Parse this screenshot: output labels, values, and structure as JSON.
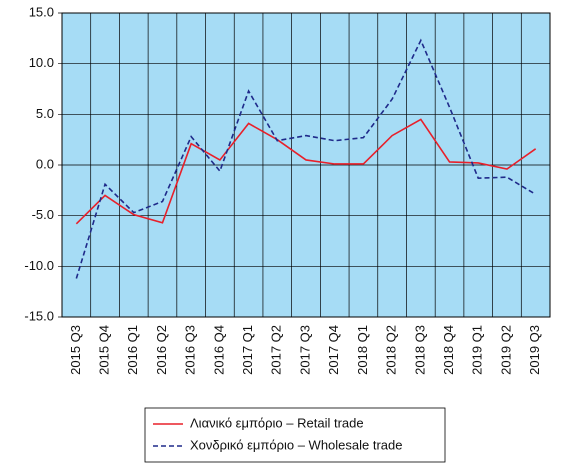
{
  "chart_data": {
    "type": "line",
    "categories": [
      "2015 Q3",
      "2015 Q4",
      "2016 Q1",
      "2016 Q2",
      "2016 Q3",
      "2016 Q4",
      "2017 Q1",
      "2017 Q2",
      "2017 Q3",
      "2017 Q4",
      "2018 Q1",
      "2018 Q2",
      "2018 Q3",
      "2018 Q4",
      "2019 Q1",
      "2019 Q2",
      "2019 Q3"
    ],
    "series": [
      {
        "name": "Λιανικό εμπόριο – Retail trade",
        "color": "#e8202a",
        "dash": false,
        "values": [
          -5.8,
          -3.0,
          -4.9,
          -5.7,
          2.1,
          0.5,
          4.1,
          2.5,
          0.5,
          0.1,
          0.1,
          2.9,
          4.5,
          0.3,
          0.2,
          -0.4,
          1.6
        ]
      },
      {
        "name": "Χονδρικό εμπόριο – Wholesale trade",
        "color": "#1f2a8a",
        "dash": true,
        "values": [
          -11.2,
          -1.9,
          -4.7,
          -3.6,
          2.8,
          -0.6,
          7.3,
          2.4,
          2.9,
          2.4,
          2.7,
          6.5,
          12.3,
          5.7,
          -1.3,
          -1.2,
          -2.9
        ]
      }
    ],
    "ylim": [
      -15,
      15
    ],
    "yticks": [
      {
        "value": -15,
        "label": "-15.0"
      },
      {
        "value": -10,
        "label": "-10.0"
      },
      {
        "value": -5,
        "label": "-5.0"
      },
      {
        "value": 0,
        "label": "0.0"
      },
      {
        "value": 5,
        "label": "5.0"
      },
      {
        "value": 10,
        "label": "10.0"
      },
      {
        "value": 15,
        "label": "15.0"
      }
    ],
    "grid": true,
    "background": "#a6dcf5"
  }
}
